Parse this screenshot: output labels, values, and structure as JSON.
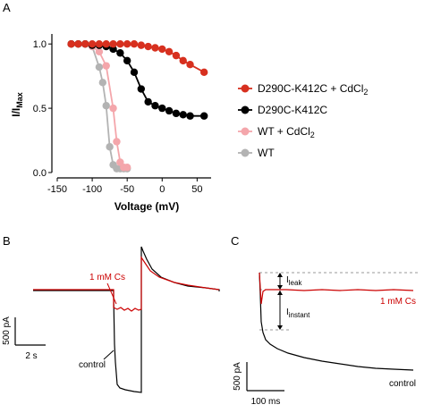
{
  "panels": {
    "a": "A",
    "b": "B",
    "c": "C"
  },
  "chart_data": [
    {
      "type": "scatter",
      "xlabel": "Voltage (mV)",
      "ylabel_main": "I/I",
      "ylabel_sub": "Max",
      "xlim": [
        -150,
        70
      ],
      "ylim": [
        0,
        1.05
      ],
      "xticks": [
        -150,
        -100,
        -50,
        0,
        50
      ],
      "xtick_labels": [
        "-150",
        "-100",
        "-50",
        "0",
        "50"
      ],
      "yticks": [
        0.0,
        0.5,
        1.0
      ],
      "ytick_labels": [
        "0.0",
        "0.5",
        "1.0"
      ],
      "legend_position": "right",
      "series": [
        {
          "name": "D290C-K412C + CdCl",
          "name_sub": "2",
          "color": "#d7301f",
          "x": [
            -130,
            -120,
            -110,
            -100,
            -90,
            -80,
            -70,
            -60,
            -50,
            -40,
            -30,
            -20,
            -10,
            0,
            10,
            20,
            30,
            40,
            60
          ],
          "y": [
            1.0,
            1.0,
            1.0,
            1.0,
            1.0,
            1.0,
            1.0,
            1.0,
            1.0,
            1.0,
            0.99,
            0.98,
            0.97,
            0.96,
            0.94,
            0.91,
            0.87,
            0.84,
            0.78
          ]
        },
        {
          "name": "D290C-K412C",
          "color": "#000000",
          "x": [
            -130,
            -120,
            -110,
            -100,
            -90,
            -80,
            -70,
            -60,
            -50,
            -40,
            -30,
            -20,
            -10,
            0,
            10,
            20,
            30,
            40,
            60
          ],
          "y": [
            1.0,
            1.0,
            1.0,
            0.99,
            0.99,
            0.98,
            0.96,
            0.93,
            0.87,
            0.78,
            0.65,
            0.55,
            0.52,
            0.5,
            0.48,
            0.46,
            0.45,
            0.44,
            0.44
          ]
        },
        {
          "name": "WT + CdCl",
          "name_sub": "2",
          "color": "#f4a6ab",
          "x": [
            -130,
            -110,
            -100,
            -90,
            -80,
            -70,
            -65,
            -60,
            -55,
            -50
          ],
          "y": [
            1.0,
            1.0,
            0.98,
            0.94,
            0.83,
            0.5,
            0.24,
            0.08,
            0.04,
            0.04
          ]
        },
        {
          "name": "WT",
          "color": "#b3b3b3",
          "x": [
            -130,
            -110,
            -100,
            -90,
            -85,
            -80,
            -75,
            -70,
            -65,
            -60,
            -55,
            -50
          ],
          "y": [
            1.0,
            1.0,
            0.98,
            0.82,
            0.7,
            0.52,
            0.2,
            0.06,
            0.03,
            0.03,
            0.03,
            0.03
          ]
        }
      ]
    }
  ],
  "panel_b": {
    "cs_label": "1 mM Cs",
    "control_label": "control",
    "scale_current": "500 pA",
    "scale_time": "2 s",
    "cs_color": "#cc0000"
  },
  "panel_c": {
    "leak_main": "I",
    "leak_sub": "leak",
    "instant_main": "I",
    "instant_sub": "instant",
    "cs_label": "1 mM Cs",
    "control_label": "control",
    "scale_current": "500 pA",
    "scale_time": "100 ms",
    "cs_color": "#cc0000"
  }
}
